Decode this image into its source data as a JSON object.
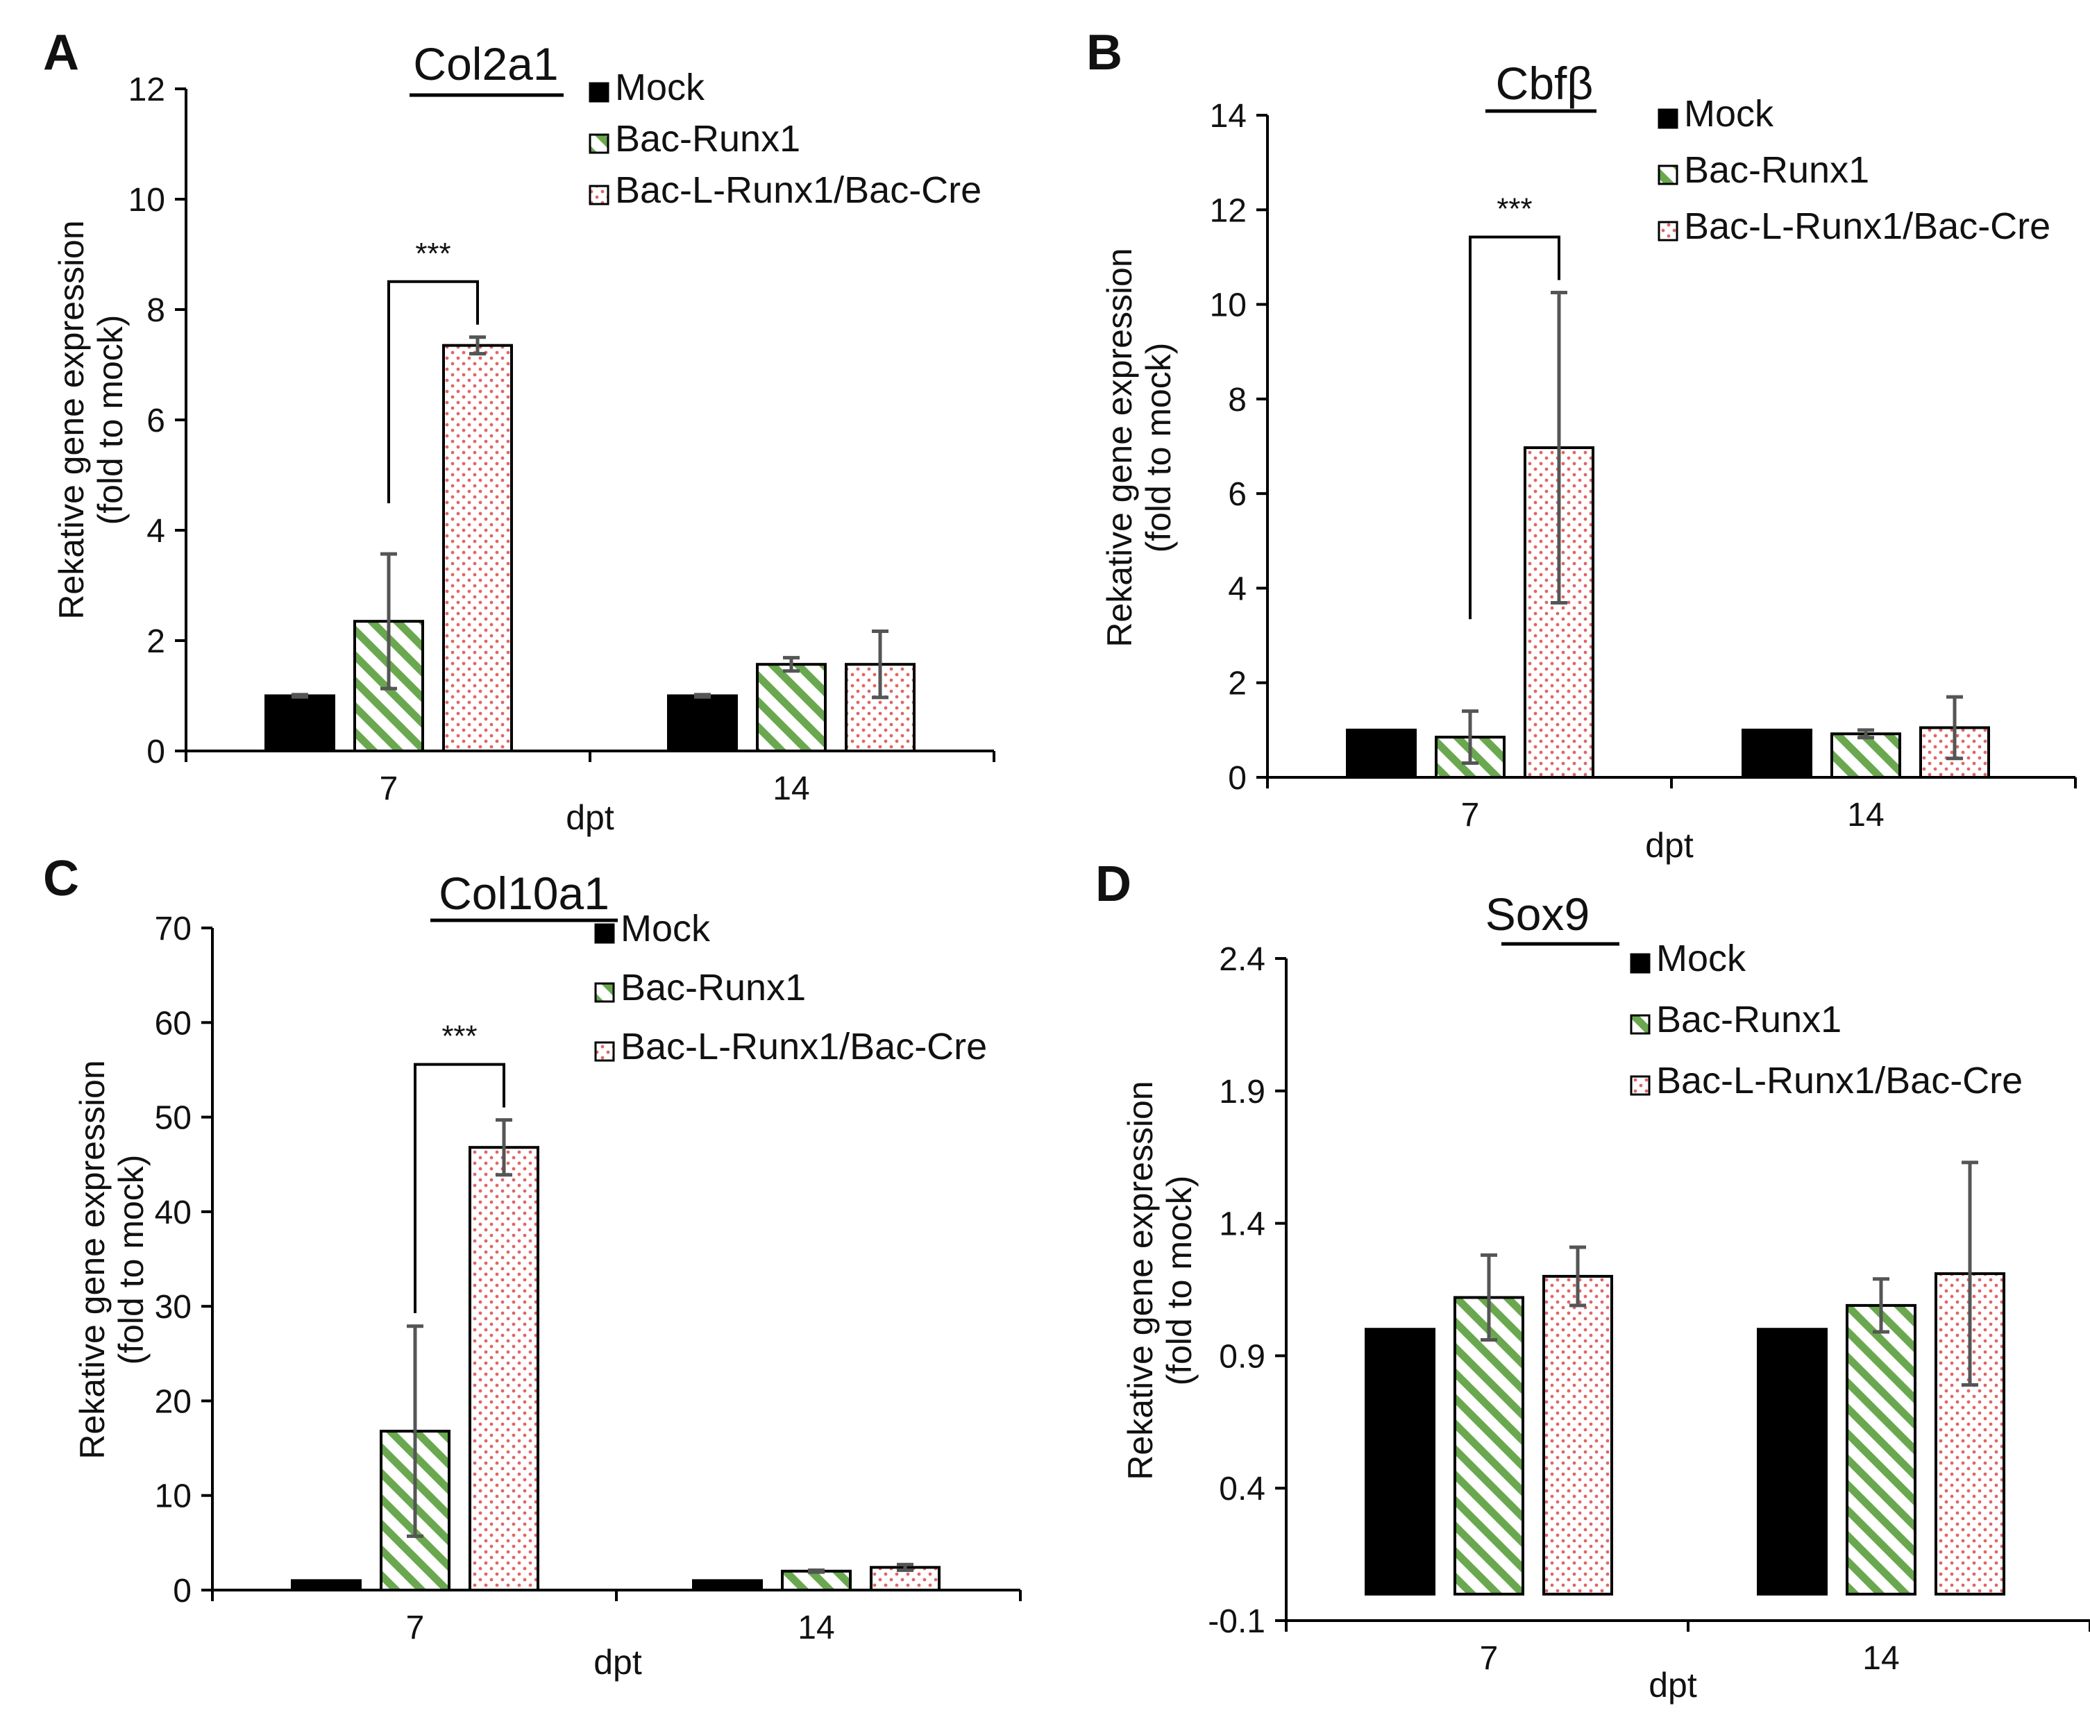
{
  "colors": {
    "mock": "#000000",
    "bac_runx1": "#6aa84f",
    "bac_l_runx1_cre": "#e06666",
    "axis": "#000000",
    "error_bar": "#555555"
  },
  "legend": [
    "Mock",
    "Bac-Runx1",
    "Bac-L-Runx1/Bac-Cre"
  ],
  "chart_data": [
    {
      "panel": "A",
      "type": "bar",
      "title": "Col2a1",
      "xlabel": "dpt",
      "ylabel": [
        "Rekative gene expression",
        "(fold to mock)"
      ],
      "categories": [
        "7",
        "14"
      ],
      "ylim": [
        0,
        12
      ],
      "yticks": [
        "0",
        "2",
        "4",
        "6",
        "8",
        "10",
        "12"
      ],
      "series": [
        {
          "name": "Mock",
          "values": [
            1.0,
            1.0
          ],
          "errors": [
            0.02,
            0.02
          ]
        },
        {
          "name": "Bac-Runx1",
          "values": [
            2.35,
            1.57
          ],
          "errors": [
            1.22,
            0.12
          ]
        },
        {
          "name": "Bac-L-Runx1/Bac-Cre",
          "values": [
            7.35,
            1.57
          ],
          "errors": [
            0.15,
            0.6
          ]
        }
      ],
      "significance": [
        {
          "category": "7",
          "from": "Bac-Runx1",
          "to": "Bac-L-Runx1/Bac-Cre",
          "label": "***"
        }
      ]
    },
    {
      "panel": "B",
      "type": "bar",
      "title": "Cbfβ",
      "xlabel": "dpt",
      "ylabel": [
        "Rekative gene expression",
        "(fold to mock)"
      ],
      "categories": [
        "7",
        "14"
      ],
      "ylim": [
        0,
        14
      ],
      "yticks": [
        "0",
        "2",
        "4",
        "6",
        "8",
        "10",
        "12",
        "14"
      ],
      "series": [
        {
          "name": "Mock",
          "values": [
            1.0,
            1.0
          ],
          "errors": [
            0.0,
            0.0
          ]
        },
        {
          "name": "Bac-Runx1",
          "values": [
            0.85,
            0.92
          ],
          "errors": [
            0.55,
            0.08
          ]
        },
        {
          "name": "Bac-L-Runx1/Bac-Cre",
          "values": [
            6.97,
            1.05
          ],
          "errors": [
            3.28,
            0.65
          ]
        }
      ],
      "significance": [
        {
          "category": "7",
          "from": "Bac-Runx1",
          "to": "Bac-L-Runx1/Bac-Cre",
          "label": "***"
        }
      ]
    },
    {
      "panel": "C",
      "type": "bar",
      "title": "Col10a1",
      "xlabel": "dpt",
      "ylabel": [
        "Rekative gene expression",
        "(fold to mock)"
      ],
      "categories": [
        "7",
        "14"
      ],
      "ylim": [
        0,
        70
      ],
      "yticks": [
        "0",
        "10",
        "20",
        "30",
        "40",
        "50",
        "60",
        "70"
      ],
      "series": [
        {
          "name": "Mock",
          "values": [
            1.0,
            1.0
          ],
          "errors": [
            0.0,
            0.0
          ]
        },
        {
          "name": "Bac-Runx1",
          "values": [
            16.8,
            2.0
          ],
          "errors": [
            11.1,
            0.1
          ]
        },
        {
          "name": "Bac-L-Runx1/Bac-Cre",
          "values": [
            46.8,
            2.4
          ],
          "errors": [
            2.9,
            0.3
          ]
        }
      ],
      "significance": [
        {
          "category": "7",
          "from": "Bac-Runx1",
          "to": "Bac-L-Runx1/Bac-Cre",
          "label": "***"
        }
      ]
    },
    {
      "panel": "D",
      "type": "bar",
      "title": "Sox9",
      "xlabel": "dpt",
      "ylabel": [
        "Rekative gene expression",
        "(fold to mock)"
      ],
      "categories": [
        "7",
        "14"
      ],
      "ylim": [
        -0.1,
        2.4
      ],
      "yticks": [
        "-0.1",
        "0.4",
        "0.9",
        "1.4",
        "1.9",
        "2.4"
      ],
      "series": [
        {
          "name": "Mock",
          "values": [
            1.0,
            1.0
          ],
          "errors": [
            0.0,
            0.0
          ]
        },
        {
          "name": "Bac-Runx1",
          "values": [
            1.12,
            1.09
          ],
          "errors": [
            0.16,
            0.1
          ]
        },
        {
          "name": "Bac-L-Runx1/Bac-Cre",
          "values": [
            1.2,
            1.21
          ],
          "errors": [
            0.11,
            0.42
          ]
        }
      ],
      "significance": []
    }
  ]
}
